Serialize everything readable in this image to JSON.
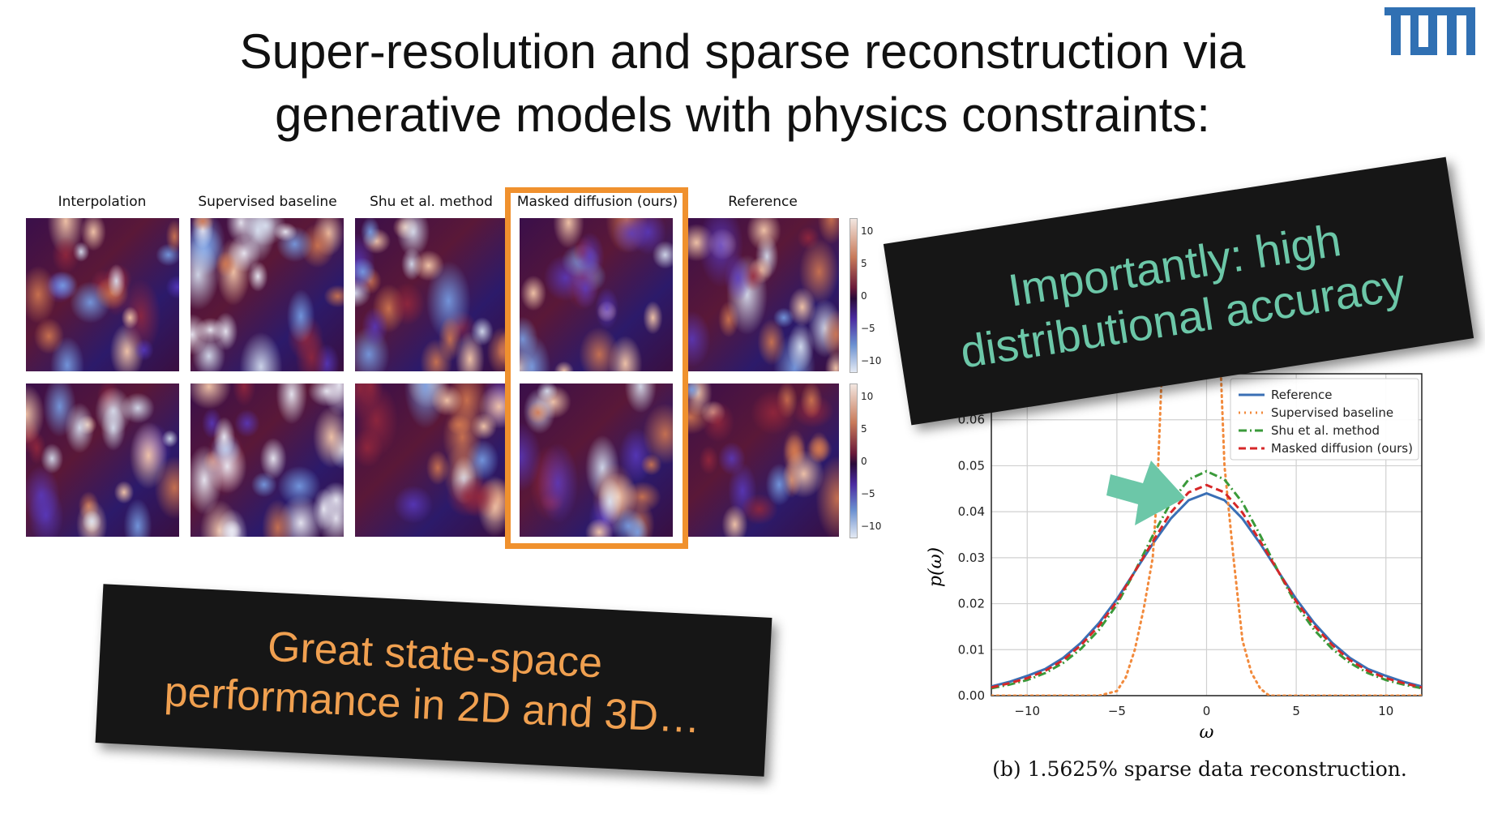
{
  "slide": {
    "title_line1": "Super-resolution and sparse reconstruction via",
    "title_line2": "generative models with physics constraints:",
    "logo_text": "TUM",
    "logo_color": "#3070b3"
  },
  "figure": {
    "column_titles": [
      "Interpolation",
      "Supervised baseline",
      "Shu et al. method",
      "Masked diffusion (ours)",
      "Reference"
    ],
    "highlighted_column": "Masked diffusion (ours)",
    "highlight_color": "#f0912e",
    "colorbar_ticks": [
      "10",
      "5",
      "0",
      "−5",
      "−10"
    ],
    "rows": 2
  },
  "callouts": {
    "left": {
      "line1": "Great state-space",
      "line2": "performance in 2D and 3D…",
      "color": "#f0a050"
    },
    "right": {
      "line1": "Importantly: high",
      "line2": "distributional accuracy",
      "color": "#6cc7a8"
    }
  },
  "caption": "(b) 1.5625% sparse data reconstruction.",
  "chart_data": {
    "type": "line",
    "xlabel": "ω",
    "ylabel": "p(ω)",
    "xlim": [
      -12,
      12
    ],
    "ylim": [
      0,
      0.07
    ],
    "xticks": [
      -10,
      -5,
      0,
      5,
      10
    ],
    "xtick_labels": [
      "−10",
      "−5",
      "0",
      "5",
      "10"
    ],
    "yticks": [
      0.0,
      0.01,
      0.02,
      0.03,
      0.04,
      0.05,
      0.06
    ],
    "ytick_labels": [
      "0.00",
      "0.01",
      "0.02",
      "0.03",
      "0.04",
      "0.05",
      "0.06"
    ],
    "grid": true,
    "legend_placement": "top-right",
    "annotation": "teal arrow pointing at peaks",
    "series": [
      {
        "name": "Reference",
        "color": "#3a6fb5",
        "style": "solid",
        "x": [
          -12,
          -11,
          -10,
          -9,
          -8,
          -7,
          -6,
          -5,
          -4,
          -3,
          -2,
          -1,
          0,
          1,
          2,
          3,
          4,
          5,
          6,
          7,
          8,
          9,
          10,
          11,
          12
        ],
        "y": [
          0.002,
          0.003,
          0.0043,
          0.0058,
          0.0082,
          0.0115,
          0.0158,
          0.021,
          0.027,
          0.033,
          0.0385,
          0.0425,
          0.044,
          0.0425,
          0.0385,
          0.033,
          0.027,
          0.021,
          0.0158,
          0.0115,
          0.0082,
          0.0058,
          0.0043,
          0.003,
          0.002
        ]
      },
      {
        "name": "Supervised baseline",
        "color": "#f28a3c",
        "style": "dotted",
        "x": [
          -12,
          -6,
          -5,
          -4.5,
          -4,
          -3.5,
          -3,
          -2.75,
          -2.5,
          -2.3,
          null,
          0.7,
          0.8,
          1,
          1.5,
          2,
          2.5,
          3,
          3.5,
          12
        ],
        "y": [
          0,
          0,
          0.001,
          0.004,
          0.01,
          0.019,
          0.03,
          0.045,
          0.07,
          0.09,
          null,
          0.09,
          0.07,
          0.05,
          0.03,
          0.012,
          0.005,
          0.0015,
          0,
          0
        ]
      },
      {
        "name": "Shu et al. method",
        "color": "#3a9a3a",
        "style": "dashdot",
        "x": [
          -12,
          -11,
          -10,
          -9,
          -8,
          -7,
          -6,
          -5,
          -4,
          -3,
          -2,
          -1,
          0,
          1,
          2,
          3,
          4,
          5,
          6,
          7,
          8,
          9,
          10,
          11,
          12
        ],
        "y": [
          0.0016,
          0.0024,
          0.0034,
          0.0049,
          0.0071,
          0.0102,
          0.0143,
          0.0198,
          0.027,
          0.0348,
          0.042,
          0.047,
          0.0488,
          0.047,
          0.042,
          0.0348,
          0.027,
          0.0198,
          0.0143,
          0.0102,
          0.0071,
          0.0049,
          0.0034,
          0.0024,
          0.0016
        ]
      },
      {
        "name": "Masked diffusion (ours)",
        "color": "#d62728",
        "style": "dashed",
        "x": [
          -12,
          -11,
          -10,
          -9,
          -8,
          -7,
          -6,
          -5,
          -4,
          -3,
          -2,
          -1,
          0,
          1,
          2,
          3,
          4,
          5,
          6,
          7,
          8,
          9,
          10,
          11,
          12
        ],
        "y": [
          0.0018,
          0.0027,
          0.0038,
          0.0054,
          0.0077,
          0.011,
          0.0152,
          0.0205,
          0.027,
          0.0335,
          0.0398,
          0.0442,
          0.0458,
          0.0442,
          0.0398,
          0.0335,
          0.027,
          0.0205,
          0.0152,
          0.011,
          0.0077,
          0.0054,
          0.0038,
          0.0027,
          0.0018
        ]
      }
    ]
  }
}
